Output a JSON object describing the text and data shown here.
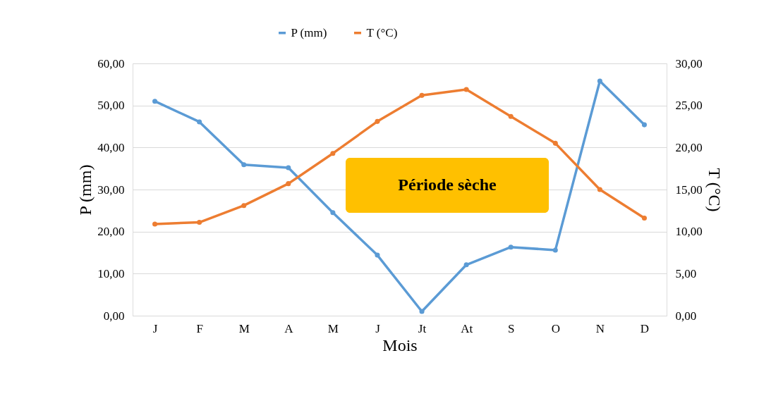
{
  "chart_data": {
    "type": "line",
    "xlabel": "Mois",
    "ylabel": "P (mm)",
    "y2label": "T (°C)",
    "categories": [
      "J",
      "F",
      "M",
      "A",
      "M",
      "J",
      "Jt",
      "At",
      "S",
      "O",
      "N",
      "D"
    ],
    "series": [
      {
        "name": "P (mm)",
        "color": "#5b9bd5",
        "values": [
          51.0,
          46.1,
          35.9,
          35.2,
          24.5,
          14.4,
          1.0,
          12.1,
          16.3,
          15.6,
          55.8,
          45.4
        ]
      },
      {
        "name": "T (°C)",
        "color": "#ed7d31",
        "axis": "y2",
        "values": [
          10.9,
          11.1,
          13.1,
          15.7,
          19.3,
          23.1,
          26.2,
          26.9,
          23.7,
          20.5,
          15.0,
          11.6
        ]
      }
    ],
    "ylim": [
      0,
      60
    ],
    "yticks": [
      {
        "value": 0,
        "label": "0,00"
      },
      {
        "value": 10,
        "label": "10,00"
      },
      {
        "value": 20,
        "label": "20,00"
      },
      {
        "value": 30,
        "label": "30,00"
      },
      {
        "value": 40,
        "label": "40,00"
      },
      {
        "value": 50,
        "label": "50,00"
      },
      {
        "value": 60,
        "label": "60,00"
      }
    ],
    "y2lim": [
      0,
      30
    ],
    "y2ticks": [
      {
        "value": 0,
        "label": "0,00"
      },
      {
        "value": 5,
        "label": "5,00"
      },
      {
        "value": 10,
        "label": "10,00"
      },
      {
        "value": 15,
        "label": "15,00"
      },
      {
        "value": 20,
        "label": "20,00"
      },
      {
        "value": 25,
        "label": "25,00"
      },
      {
        "value": 30,
        "label": "30,00"
      }
    ],
    "annotations": [
      "Période sèche"
    ],
    "grid": "y",
    "legend": "top",
    "marker": "circle",
    "line_style": "solid"
  }
}
